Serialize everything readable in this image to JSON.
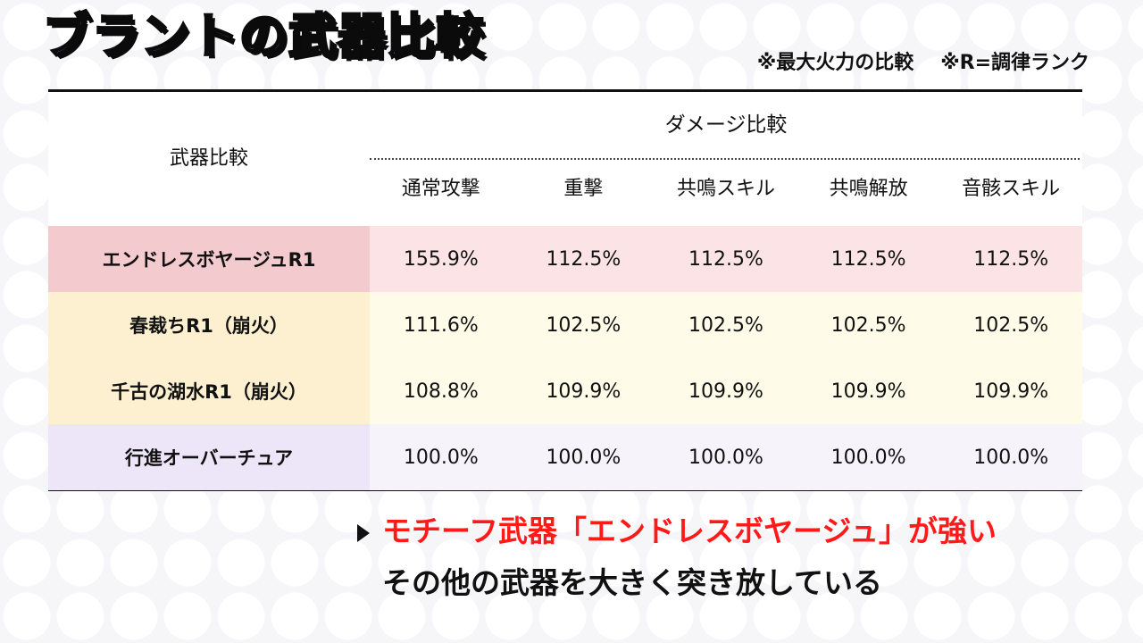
{
  "title": "ブラントの武器比較",
  "notes": [
    "※最大火力の比較",
    "※R=調律ランク"
  ],
  "table": {
    "row_header_label": "武器比較",
    "group_header": "ダメージ比較",
    "columns": [
      "通常攻撃",
      "重撃",
      "共鳴スキル",
      "共鳴解放",
      "音骸スキル"
    ],
    "rows": [
      {
        "name": "エンドレスボヤージュR1",
        "values": [
          "155.9%",
          "112.5%",
          "112.5%",
          "112.5%",
          "112.5%"
        ]
      },
      {
        "name": "春裁ちR1（崩火）",
        "values": [
          "111.6%",
          "102.5%",
          "102.5%",
          "102.5%",
          "102.5%"
        ]
      },
      {
        "name": "千古の湖水R1（崩火）",
        "values": [
          "108.8%",
          "109.9%",
          "109.9%",
          "109.9%",
          "109.9%"
        ]
      },
      {
        "name": "行進オーバーチュア",
        "values": [
          "100.0%",
          "100.0%",
          "100.0%",
          "100.0%",
          "100.0%"
        ]
      }
    ]
  },
  "summary": {
    "line1": "モチーフ武器「エンドレスボヤージュ」が強い",
    "line2": "その他の武器を大きく突き放している"
  },
  "colors": {
    "title": "#4fb3f0",
    "highlight_text": "#ff1a1a",
    "row1": "#fce4e6",
    "row2_3": "#fffbe9",
    "row4": "#f6f3fb"
  }
}
